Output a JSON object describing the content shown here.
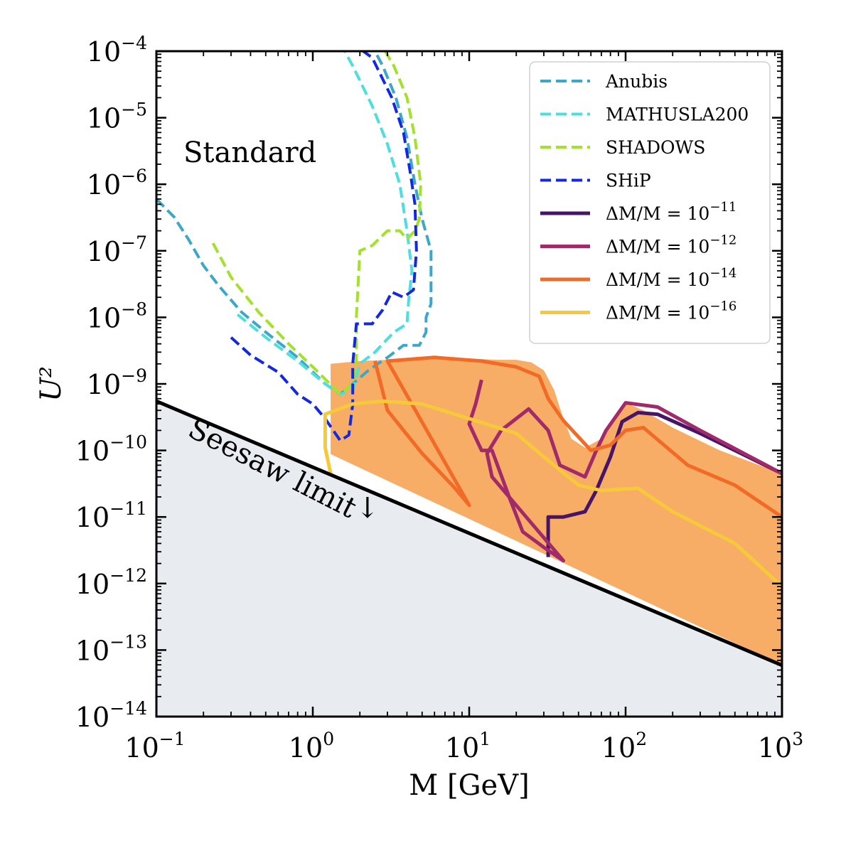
{
  "chart_data": {
    "type": "line",
    "title": "",
    "xlabel": "M [GeV]",
    "ylabel": "U²",
    "xscale": "log",
    "yscale": "log",
    "xlim": [
      0.1,
      1000
    ],
    "ylim": [
      1e-14,
      0.0001
    ],
    "x_ticks": [
      {
        "base": "10",
        "exp": "−1",
        "value": 0.1
      },
      {
        "base": "10",
        "exp": "0",
        "value": 1
      },
      {
        "base": "10",
        "exp": "1",
        "value": 10
      },
      {
        "base": "10",
        "exp": "2",
        "value": 100
      },
      {
        "base": "10",
        "exp": "3",
        "value": 1000
      }
    ],
    "y_ticks": [
      {
        "base": "10",
        "exp": "−4",
        "value": 0.0001
      },
      {
        "base": "10",
        "exp": "−5",
        "value": 1e-05
      },
      {
        "base": "10",
        "exp": "−6",
        "value": 1e-06
      },
      {
        "base": "10",
        "exp": "−7",
        "value": 1e-07
      },
      {
        "base": "10",
        "exp": "−8",
        "value": 1e-08
      },
      {
        "base": "10",
        "exp": "−9",
        "value": 1e-09
      },
      {
        "base": "10",
        "exp": "−10",
        "value": 1e-10
      },
      {
        "base": "10",
        "exp": "−11",
        "value": 1e-11
      },
      {
        "base": "10",
        "exp": "−12",
        "value": 1e-12
      },
      {
        "base": "10",
        "exp": "−13",
        "value": 1e-13
      },
      {
        "base": "10",
        "exp": "−14",
        "value": 1e-14
      }
    ],
    "legend_position": "top-right",
    "annotations": {
      "region_label": "Standard",
      "seesaw_label": "Seesaw limit",
      "seesaw_arrow": "↓"
    },
    "seesaw_limit": {
      "color": "#000000",
      "points": [
        [
          0.1,
          5.5e-10
        ],
        [
          1000,
          5.9e-14
        ]
      ],
      "fill": "#e8ebf0"
    },
    "excluded_region": {
      "color": "#f7a95e",
      "points": [
        [
          1.3,
          2e-09
        ],
        [
          2.0,
          2.2e-09
        ],
        [
          3.0,
          2.3e-09
        ],
        [
          6.0,
          2.5e-09
        ],
        [
          10,
          2.4e-09
        ],
        [
          15,
          2.3e-09
        ],
        [
          20,
          2.3e-09
        ],
        [
          25,
          2.1e-09
        ],
        [
          30,
          1.6e-09
        ],
        [
          35,
          8e-10
        ],
        [
          40,
          3e-10
        ],
        [
          45,
          1.5e-10
        ],
        [
          55,
          1.1e-10
        ],
        [
          70,
          1.5e-10
        ],
        [
          90,
          4e-10
        ],
        [
          100,
          5.2e-10
        ],
        [
          130,
          4e-10
        ],
        [
          200,
          2.2e-10
        ],
        [
          400,
          1e-10
        ],
        [
          1000,
          4.5e-11
        ],
        [
          1000,
          5.9e-14
        ],
        [
          1.3,
          8.8e-11
        ]
      ]
    },
    "series": [
      {
        "name": "Anubis",
        "style": "dashed",
        "color": "#3ba7c9",
        "points": [
          [
            0.1,
            6e-07
          ],
          [
            0.13,
            3.2e-07
          ],
          [
            0.16,
            1.5e-07
          ],
          [
            0.2,
            6e-08
          ],
          [
            0.25,
            3e-08
          ],
          [
            0.35,
            1.2e-08
          ],
          [
            0.5,
            6e-09
          ],
          [
            0.8,
            2.5e-09
          ],
          [
            1.2,
            1e-09
          ],
          [
            1.5,
            7e-10
          ],
          [
            1.8,
            1e-09
          ],
          [
            2.2,
            1.5e-09
          ],
          [
            2.6,
            2e-09
          ],
          [
            3.0,
            2.5e-09
          ],
          [
            3.8,
            3.8e-09
          ],
          [
            4.8,
            3.8e-09
          ],
          [
            5.3,
            6e-09
          ],
          [
            5.3,
            1e-08
          ],
          [
            5.7,
            1.6e-08
          ],
          [
            5.7,
            1e-07
          ],
          [
            5.0,
            3e-07
          ],
          [
            4.5,
            1e-06
          ],
          [
            4.0,
            5e-06
          ],
          [
            3.4,
            2e-05
          ],
          [
            2.8,
            6e-05
          ],
          [
            2.5,
            0.0001
          ]
        ]
      },
      {
        "name": "MATHUSLA200",
        "style": "dashed",
        "color": "#4ddedf",
        "points": [
          [
            0.33,
            1.1e-08
          ],
          [
            0.5,
            5e-09
          ],
          [
            0.8,
            2.2e-09
          ],
          [
            1.2,
            1e-09
          ],
          [
            1.5,
            7e-10
          ],
          [
            1.8,
            8e-10
          ],
          [
            2.0,
            2e-09
          ],
          [
            2.5,
            3e-09
          ],
          [
            3.3,
            6e-09
          ],
          [
            4.0,
            8e-09
          ],
          [
            4.1,
            1.8e-08
          ],
          [
            4.3,
            5e-08
          ],
          [
            4.0,
            2e-07
          ],
          [
            3.6,
            1e-06
          ],
          [
            3.0,
            4e-06
          ],
          [
            2.4,
            1.5e-05
          ],
          [
            1.8,
            6e-05
          ],
          [
            1.6,
            0.0001
          ]
        ]
      },
      {
        "name": "SHADOWS",
        "style": "dashed",
        "color": "#a2e22a",
        "points": [
          [
            0.23,
            1.3e-07
          ],
          [
            0.3,
            4e-08
          ],
          [
            0.45,
            1.2e-08
          ],
          [
            0.7,
            4e-09
          ],
          [
            1.0,
            1.8e-09
          ],
          [
            1.5,
            7e-10
          ],
          [
            1.8,
            1e-09
          ],
          [
            1.9,
            2e-09
          ],
          [
            1.9,
            1e-08
          ],
          [
            2.0,
            1e-07
          ],
          [
            2.4,
            1.2e-07
          ],
          [
            3.0,
            2e-07
          ],
          [
            3.6,
            2e-07
          ],
          [
            4.0,
            1.5e-07
          ],
          [
            4.5,
            2e-07
          ],
          [
            4.8,
            3e-07
          ],
          [
            4.9,
            1e-06
          ],
          [
            4.5,
            5e-06
          ],
          [
            4.0,
            2e-05
          ],
          [
            3.3,
            6e-05
          ],
          [
            2.9,
            0.0001
          ]
        ]
      },
      {
        "name": "SHiP",
        "style": "dashed",
        "color": "#1428e2",
        "points": [
          [
            0.3,
            5e-09
          ],
          [
            0.4,
            2.7e-09
          ],
          [
            0.6,
            1.5e-09
          ],
          [
            0.8,
            7e-10
          ],
          [
            1.0,
            5e-10
          ],
          [
            1.2,
            3e-10
          ],
          [
            1.5,
            1.4e-10
          ],
          [
            1.7,
            1.7e-10
          ],
          [
            1.8,
            5e-10
          ],
          [
            1.8,
            2e-09
          ],
          [
            1.9,
            8e-09
          ],
          [
            2.4,
            8e-09
          ],
          [
            2.8,
            1.3e-08
          ],
          [
            3.2,
            2.4e-08
          ],
          [
            3.8,
            2e-08
          ],
          [
            4.4,
            2.6e-08
          ],
          [
            4.6,
            1e-07
          ],
          [
            4.5,
            5e-07
          ],
          [
            4.2,
            1.5e-06
          ],
          [
            3.8,
            6e-06
          ],
          [
            3.2,
            2e-05
          ],
          [
            2.4,
            8e-05
          ],
          [
            2.1,
            0.0001
          ]
        ]
      },
      {
        "name": "ΔM/M = 10",
        "sup": "−11",
        "style": "solid",
        "color": "#481467",
        "points": [
          [
            32,
            2.5e-12
          ],
          [
            32,
            1e-11
          ],
          [
            40,
            1e-11
          ],
          [
            55,
            1.2e-11
          ],
          [
            65,
            2.5e-11
          ],
          [
            80,
            8e-11
          ],
          [
            95,
            2.7e-10
          ],
          [
            120,
            3.7e-10
          ],
          [
            160,
            3.5e-10
          ],
          [
            300,
            1.8e-10
          ],
          [
            1000,
            4.5e-11
          ]
        ]
      },
      {
        "name": "ΔM/M = 10",
        "sup": "−12",
        "style": "solid",
        "color": "#a02a6a",
        "points": [
          [
            12,
            1.15e-09
          ],
          [
            11,
            5e-10
          ],
          [
            10,
            2.5e-10
          ],
          [
            12,
            1e-10
          ],
          [
            14,
            1e-10
          ],
          [
            18,
            2e-11
          ],
          [
            22,
            6e-12
          ],
          [
            30,
            3.5e-12
          ],
          [
            40,
            2.2e-12
          ],
          [
            14,
            4e-11
          ],
          [
            13,
            9e-11
          ],
          [
            16,
            2e-10
          ],
          [
            24,
            4.2e-10
          ],
          [
            32,
            2e-10
          ],
          [
            38,
            6e-11
          ],
          [
            55,
            4e-11
          ],
          [
            65,
            1e-10
          ],
          [
            75,
            2e-10
          ],
          [
            100,
            5.2e-10
          ],
          [
            160,
            4.5e-10
          ],
          [
            300,
            2e-10
          ],
          [
            1000,
            4.5e-11
          ]
        ]
      },
      {
        "name": "ΔM/M = 10",
        "sup": "−14",
        "style": "solid",
        "color": "#f16b27",
        "points": [
          [
            2.5,
            2.2e-09
          ],
          [
            3.0,
            4e-10
          ],
          [
            5,
            9e-11
          ],
          [
            8,
            2.8e-11
          ],
          [
            10,
            1.5e-11
          ],
          [
            3.0,
            2.2e-09
          ],
          [
            6,
            2.5e-09
          ],
          [
            12,
            2.2e-09
          ],
          [
            20,
            1.8e-09
          ],
          [
            28,
            1.3e-09
          ],
          [
            32,
            6e-10
          ],
          [
            40,
            2.8e-10
          ],
          [
            60,
            1e-10
          ],
          [
            80,
            1.2e-10
          ],
          [
            100,
            2e-10
          ],
          [
            130,
            2.2e-10
          ],
          [
            250,
            6e-11
          ],
          [
            500,
            3e-11
          ],
          [
            1000,
            1e-11
          ]
        ]
      },
      {
        "name": "ΔM/M = 10",
        "sup": "−16",
        "style": "solid",
        "color": "#f6c93a",
        "points": [
          [
            1.3,
            4.5e-11
          ],
          [
            1.2,
            1.1e-10
          ],
          [
            1.2,
            3.5e-10
          ],
          [
            1.8,
            5e-10
          ],
          [
            2.8,
            5.5e-10
          ],
          [
            5,
            5e-10
          ],
          [
            10,
            3e-10
          ],
          [
            20,
            1.8e-10
          ],
          [
            30,
            8e-11
          ],
          [
            50,
            3e-11
          ],
          [
            70,
            2.5e-11
          ],
          [
            120,
            2.7e-11
          ],
          [
            200,
            1.2e-11
          ],
          [
            500,
            4e-12
          ],
          [
            1000,
            9e-13
          ]
        ]
      }
    ]
  }
}
